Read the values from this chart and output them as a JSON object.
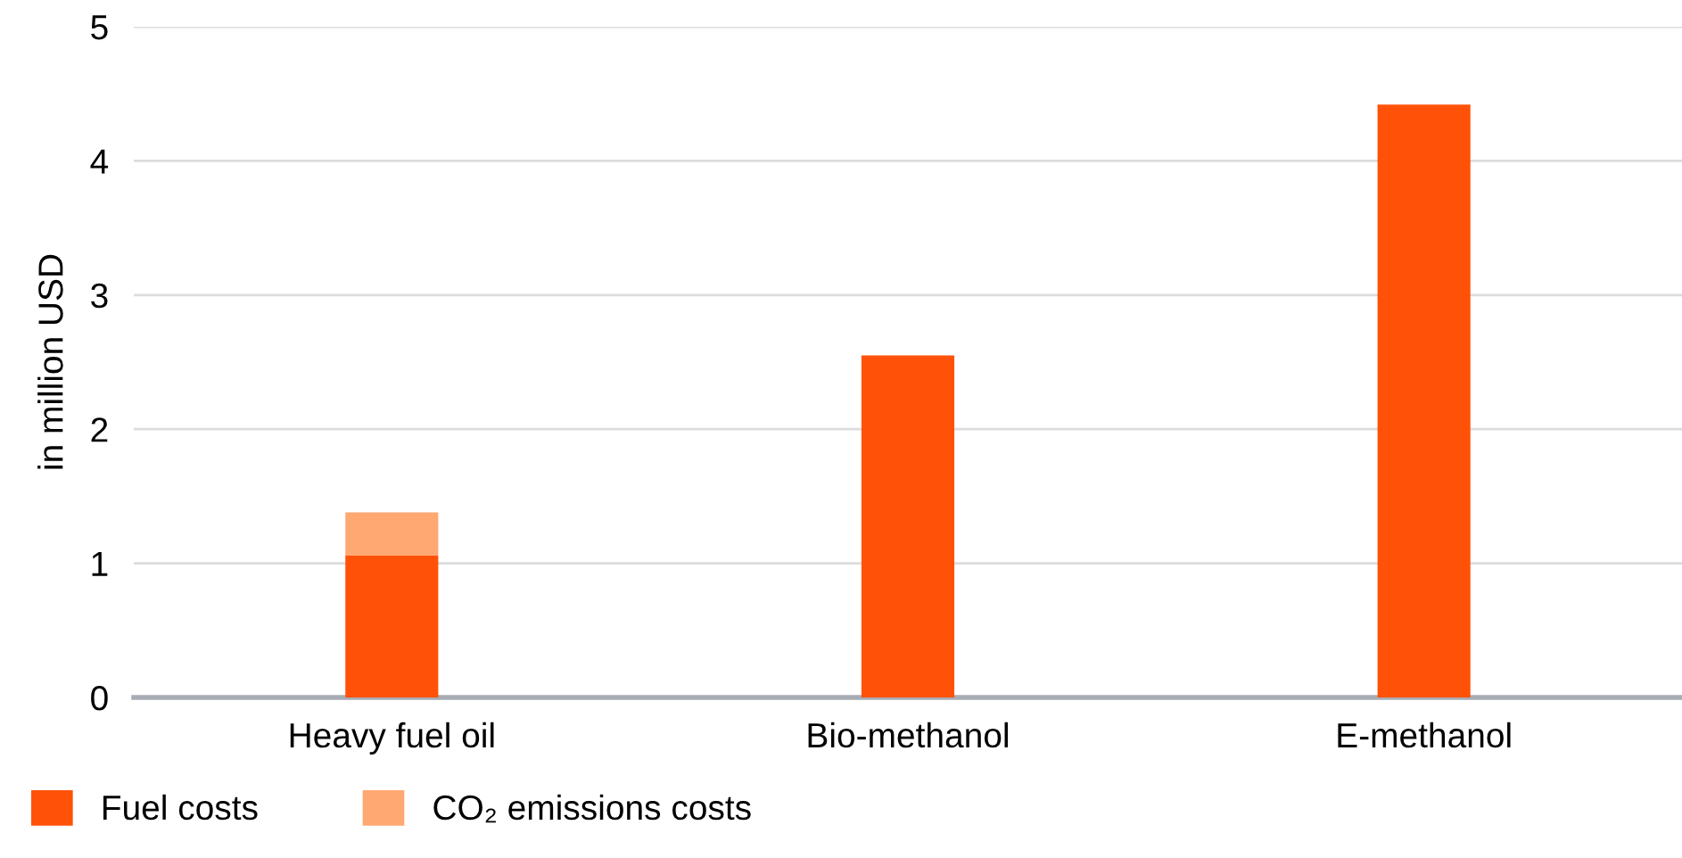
{
  "chart_data": {
    "type": "bar",
    "stacked": true,
    "ylabel": "in million USD",
    "categories": [
      "Heavy fuel oil",
      "Bio-methanol",
      "E-methanol"
    ],
    "series": [
      {
        "name": "Fuel costs",
        "color": "#ff5208",
        "values": [
          1.06,
          2.55,
          4.42
        ]
      },
      {
        "name": "CO₂ emissions costs",
        "color": "#ffa872",
        "values": [
          0.32,
          null,
          null
        ]
      }
    ],
    "ylim": [
      0,
      5
    ],
    "yticks": [
      0,
      1,
      2,
      3,
      4,
      5
    ],
    "grid": "y",
    "legend": "bottom left"
  }
}
